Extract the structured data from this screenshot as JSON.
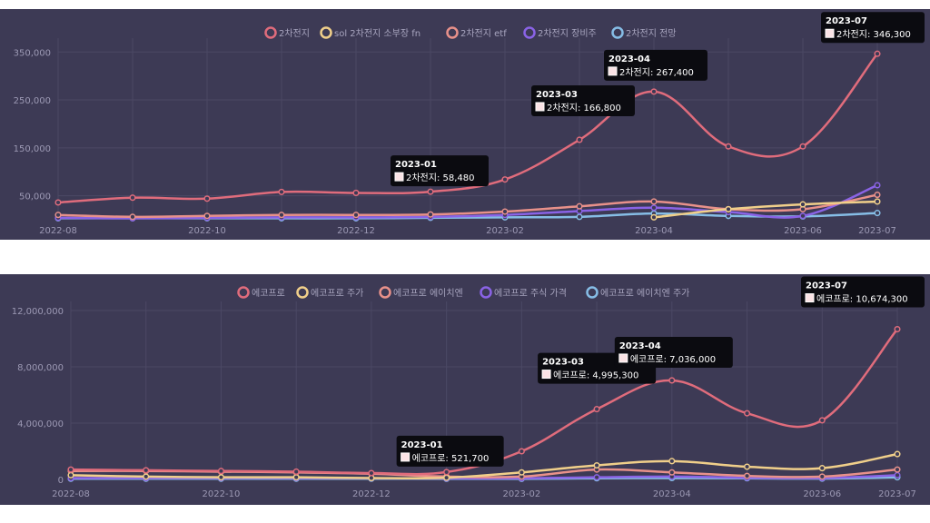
{
  "colors": {
    "background": "#3d3a55",
    "grid": "#4b4864",
    "series": [
      "#e06c7c",
      "#f0cf8a",
      "#e8918a",
      "#8a63e6",
      "#86bde6"
    ]
  },
  "chart_data": [
    {
      "type": "line",
      "x": [
        "2022-08",
        "2022-09",
        "2022-10",
        "2022-11",
        "2022-12",
        "2023-01",
        "2023-02",
        "2023-03",
        "2023-04",
        "2023-05",
        "2023-06",
        "2023-07"
      ],
      "xticks": [
        "2022-08",
        "2022-10",
        "2022-12",
        "2023-02",
        "2023-04",
        "2023-06",
        "2023-07"
      ],
      "yticks": [
        50000,
        150000,
        250000,
        350000
      ],
      "yticklabels": [
        "50,000",
        "150,000",
        "250,000",
        "350,000"
      ],
      "ylim": [
        0,
        360000
      ],
      "legend_position": "top",
      "grid": true,
      "series": [
        {
          "name": "2차전지",
          "values": [
            36000,
            46000,
            44000,
            58000,
            56000,
            58480,
            84000,
            166800,
            267400,
            153000,
            153000,
            346300
          ]
        },
        {
          "name": "sol 2차전지 소부장 fn",
          "values": [
            null,
            null,
            null,
            null,
            null,
            null,
            null,
            null,
            5000,
            22000,
            32000,
            38000
          ]
        },
        {
          "name": "2차전지 etf",
          "values": [
            10000,
            6000,
            8000,
            10000,
            10000,
            11000,
            17000,
            28000,
            38000,
            22000,
            22000,
            52000
          ]
        },
        {
          "name": "2차전지 장비주",
          "values": [
            4000,
            3000,
            4000,
            5000,
            5000,
            6000,
            10000,
            18000,
            25000,
            16000,
            8000,
            72000
          ]
        },
        {
          "name": "2차전지 전망",
          "values": [
            3000,
            3000,
            3000,
            3000,
            3000,
            4000,
            5000,
            6000,
            13000,
            8000,
            7000,
            14000
          ]
        }
      ],
      "tooltips": [
        {
          "date": "2023-01",
          "text": "2차전지: 58,480"
        },
        {
          "date": "2023-03",
          "text": "2차전지: 166,800"
        },
        {
          "date": "2023-04",
          "text": "2차전지: 267,400"
        },
        {
          "date": "2023-07",
          "text": "2차전지: 346,300"
        }
      ]
    },
    {
      "type": "line",
      "x": [
        "2022-08",
        "2022-09",
        "2022-10",
        "2022-11",
        "2022-12",
        "2023-01",
        "2023-02",
        "2023-03",
        "2023-04",
        "2023-05",
        "2023-06",
        "2023-07"
      ],
      "xticks": [
        "2022-08",
        "2022-10",
        "2022-12",
        "2023-02",
        "2023-04",
        "2023-06",
        "2023-07"
      ],
      "yticks": [
        0,
        4000000,
        8000000,
        12000000
      ],
      "yticklabels": [
        "0",
        "4,000,000",
        "8,000,000",
        "12,000,000"
      ],
      "ylim": [
        0,
        12000000
      ],
      "legend_position": "top",
      "grid": true,
      "series": [
        {
          "name": "에코프로",
          "values": [
            700000,
            650000,
            600000,
            550000,
            450000,
            521700,
            2000000,
            4995300,
            7036000,
            4700000,
            4200000,
            10674300
          ]
        },
        {
          "name": "에코프로 주가",
          "values": [
            300000,
            200000,
            150000,
            150000,
            100000,
            120000,
            500000,
            1000000,
            1300000,
            900000,
            800000,
            1800000
          ]
        },
        {
          "name": "에코프로 에이치엔",
          "values": [
            600000,
            600000,
            550000,
            500000,
            400000,
            200000,
            200000,
            700000,
            500000,
            250000,
            200000,
            700000
          ]
        },
        {
          "name": "에코프로 주식 가격",
          "values": [
            100000,
            100000,
            100000,
            100000,
            80000,
            70000,
            80000,
            150000,
            200000,
            120000,
            100000,
            300000
          ]
        },
        {
          "name": "에코프로 에이치엔 주가",
          "values": [
            50000,
            50000,
            50000,
            50000,
            50000,
            40000,
            40000,
            80000,
            100000,
            80000,
            60000,
            150000
          ]
        }
      ],
      "tooltips": [
        {
          "date": "2023-01",
          "text": "에코프로: 521,700"
        },
        {
          "date": "2023-03",
          "text": "에코프로: 4,995,300"
        },
        {
          "date": "2023-04",
          "text": "에코프로: 7,036,000"
        },
        {
          "date": "2023-07",
          "text": "에코프로: 10,674,300"
        }
      ]
    }
  ]
}
